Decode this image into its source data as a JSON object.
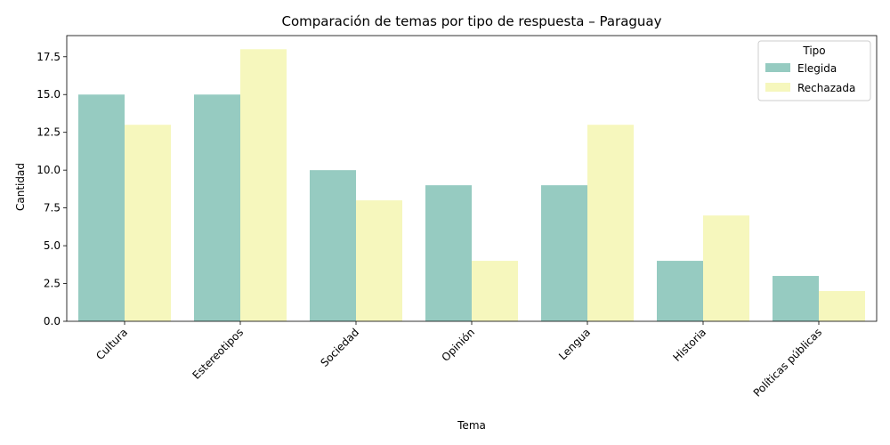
{
  "chart_data": {
    "type": "bar",
    "title": "Comparación de temas por tipo de respuesta – Paraguay",
    "xlabel": "Tema",
    "ylabel": "Cantidad",
    "categories": [
      "Cultura",
      "Estereotipos",
      "Sociedad",
      "Opinión",
      "Lengua",
      "Historia",
      "Políticas públicas"
    ],
    "series": [
      {
        "name": "Elegida",
        "values": [
          15,
          15,
          10,
          9,
          9,
          4,
          3
        ],
        "color": "#96cbc1"
      },
      {
        "name": "Rechazada",
        "values": [
          13,
          18,
          8,
          4,
          13,
          7,
          2
        ],
        "color": "#f6f7bd"
      }
    ],
    "ylim": [
      0,
      18.9
    ],
    "yticks": [
      0,
      2.5,
      5,
      7.5,
      10,
      12.5,
      15,
      17.5
    ],
    "ytick_labels": [
      "0.0",
      "2.5",
      "5.0",
      "7.5",
      "10.0",
      "12.5",
      "15.0",
      "17.5"
    ],
    "legend": {
      "title": "Tipo",
      "position": "top-right"
    },
    "grid": false
  }
}
